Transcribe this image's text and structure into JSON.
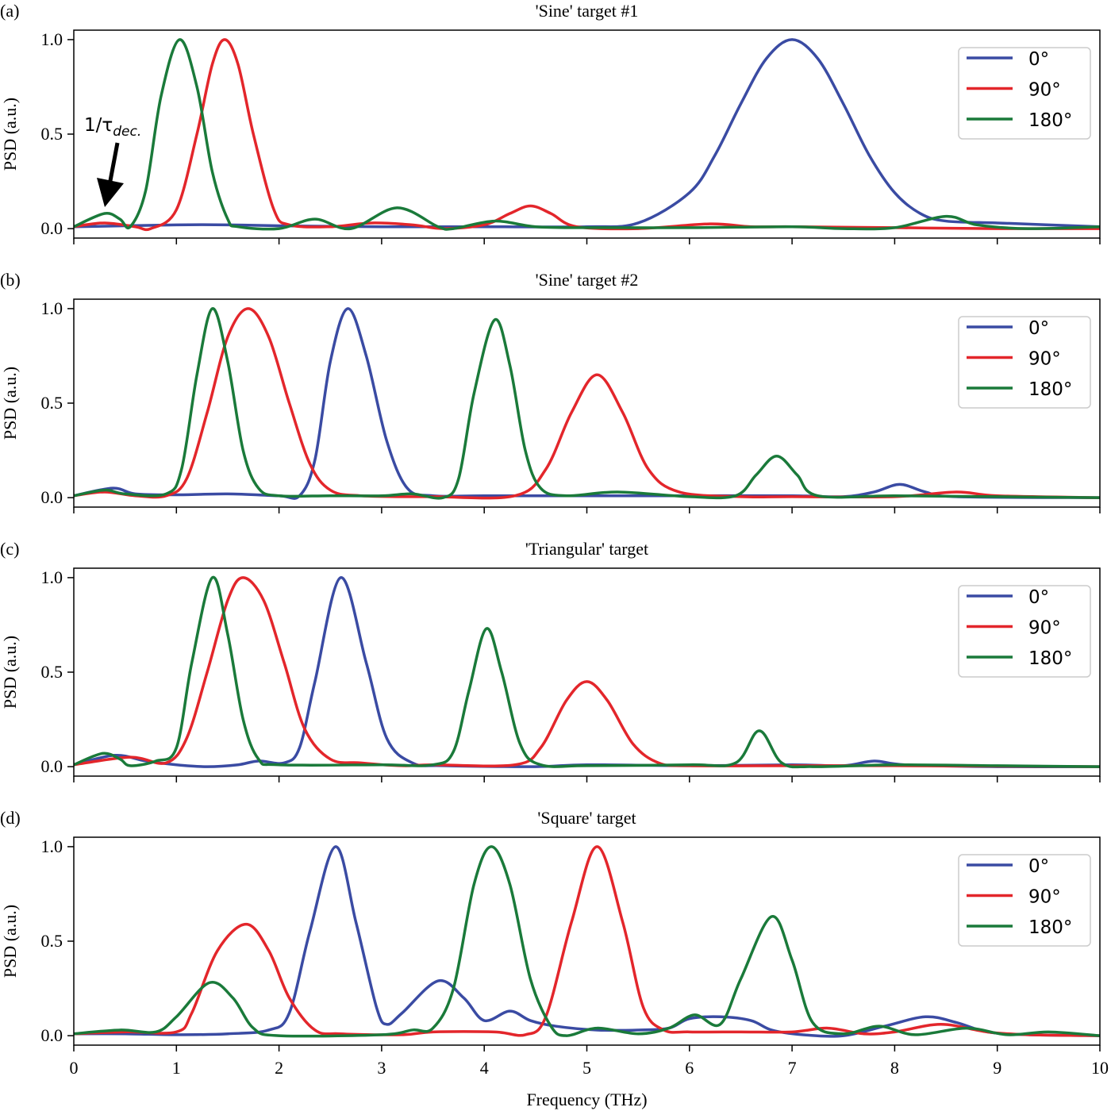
{
  "chart_data": [
    {
      "type": "line",
      "panel": "(a)",
      "title": "'Sine' target #1",
      "ylabel": "PSD (a.u.)",
      "annotation": {
        "text": "1/τ",
        "subscript": "dec."
      },
      "xlim": [
        0,
        10
      ],
      "xticks": [
        0,
        1,
        2,
        3,
        4,
        5,
        6,
        7,
        8,
        9,
        10
      ],
      "show_xticklabels": false,
      "ylim": [
        -0.05,
        1.05
      ],
      "yticks": [
        {
          "value": 0,
          "label": "0.0"
        },
        {
          "value": 0.5,
          "label": "0.5"
        },
        {
          "value": 1,
          "label": "1.0"
        }
      ],
      "legend": "upper right",
      "series": [
        {
          "name": "0°",
          "color": "#3a4ba3",
          "x": [
            0,
            0.5,
            1,
            1.5,
            2,
            3,
            4,
            5,
            5.5,
            6,
            6.25,
            6.5,
            6.75,
            7,
            7.25,
            7.5,
            7.75,
            8,
            8.25,
            8.5,
            9,
            9.5,
            10
          ],
          "values": [
            0.01,
            0.015,
            0.02,
            0.02,
            0.015,
            0.01,
            0.01,
            0.01,
            0.03,
            0.19,
            0.39,
            0.66,
            0.9,
            1.0,
            0.9,
            0.66,
            0.39,
            0.19,
            0.08,
            0.04,
            0.03,
            0.02,
            0.01
          ]
        },
        {
          "name": "90°",
          "color": "#e3262b",
          "x": [
            0,
            0.3,
            0.6,
            0.75,
            1.0,
            1.2,
            1.35,
            1.47,
            1.6,
            1.75,
            1.95,
            2.1,
            2.5,
            2.9,
            3.3,
            3.6,
            4,
            4.25,
            4.45,
            4.65,
            4.9,
            5.5,
            6.2,
            6.6,
            7,
            8,
            9,
            10
          ],
          "values": [
            0.01,
            0.03,
            0.01,
            0,
            0.1,
            0.5,
            0.87,
            1.0,
            0.87,
            0.5,
            0.1,
            0.02,
            0.01,
            0.03,
            0.02,
            0,
            0.02,
            0.08,
            0.12,
            0.08,
            0.01,
            0,
            0.025,
            0.01,
            0.01,
            0.005,
            0,
            0
          ]
        },
        {
          "name": "180°",
          "color": "#1a7a3a",
          "x": [
            0,
            0.3,
            0.45,
            0.55,
            0.7,
            0.85,
            1.03,
            1.2,
            1.35,
            1.5,
            1.6,
            2,
            2.35,
            2.7,
            3.15,
            3.55,
            3.7,
            4.1,
            4.5,
            5,
            6,
            7,
            7.5,
            8,
            8.5,
            8.8,
            9.3,
            10
          ],
          "values": [
            0.01,
            0.08,
            0.05,
            0.01,
            0.2,
            0.7,
            1.0,
            0.75,
            0.3,
            0.05,
            0.01,
            0,
            0.05,
            0,
            0.11,
            0.01,
            0,
            0.04,
            0.01,
            0.005,
            0.005,
            0.01,
            0,
            0.005,
            0.065,
            0.02,
            0,
            0.01
          ]
        }
      ]
    },
    {
      "type": "line",
      "panel": "(b)",
      "title": "'Sine' target #2",
      "ylabel": "PSD (a.u.)",
      "xlim": [
        0,
        10
      ],
      "xticks": [
        0,
        1,
        2,
        3,
        4,
        5,
        6,
        7,
        8,
        9,
        10
      ],
      "show_xticklabels": false,
      "ylim": [
        -0.05,
        1.05
      ],
      "yticks": [
        {
          "value": 0,
          "label": "0.0"
        },
        {
          "value": 0.5,
          "label": "0.5"
        },
        {
          "value": 1,
          "label": "1.0"
        }
      ],
      "legend": "upper right",
      "series": [
        {
          "name": "0°",
          "color": "#3a4ba3",
          "x": [
            0,
            0.38,
            0.6,
            1,
            1.5,
            2,
            2.2,
            2.35,
            2.5,
            2.67,
            2.85,
            3.05,
            3.25,
            3.5,
            4,
            5,
            6,
            7,
            7.5,
            7.8,
            8.05,
            8.3,
            8.6,
            10
          ],
          "values": [
            0.01,
            0.05,
            0.02,
            0.015,
            0.02,
            0.01,
            0.01,
            0.2,
            0.72,
            1.0,
            0.75,
            0.3,
            0.05,
            0.01,
            0.01,
            0.01,
            0.01,
            0.01,
            0.005,
            0.03,
            0.07,
            0.03,
            0.005,
            0
          ]
        },
        {
          "name": "90°",
          "color": "#e3262b",
          "x": [
            0,
            0.3,
            0.6,
            0.9,
            1.1,
            1.3,
            1.5,
            1.7,
            1.9,
            2.1,
            2.3,
            2.5,
            2.8,
            3.5,
            4.3,
            4.6,
            4.85,
            5.1,
            5.35,
            5.6,
            5.9,
            6.5,
            7,
            8,
            8.6,
            9,
            10
          ],
          "values": [
            0.01,
            0.03,
            0.01,
            0.01,
            0.1,
            0.45,
            0.85,
            1.0,
            0.85,
            0.5,
            0.18,
            0.04,
            0.01,
            0.005,
            0.01,
            0.15,
            0.45,
            0.65,
            0.45,
            0.15,
            0.03,
            0.005,
            0.005,
            0.005,
            0.03,
            0.01,
            0
          ]
        },
        {
          "name": "180°",
          "color": "#1a7a3a",
          "x": [
            0,
            0.3,
            0.5,
            0.9,
            1.05,
            1.2,
            1.35,
            1.5,
            1.65,
            1.8,
            2.0,
            2.5,
            3,
            3.3,
            3.6,
            3.75,
            3.9,
            4.1,
            4.25,
            4.4,
            4.55,
            4.8,
            5.3,
            6,
            6.45,
            6.65,
            6.85,
            7.05,
            7.25,
            8,
            9,
            10
          ],
          "values": [
            0.01,
            0.04,
            0.02,
            0.02,
            0.15,
            0.65,
            1.0,
            0.72,
            0.25,
            0.05,
            0.01,
            0.01,
            0.01,
            0.02,
            0,
            0.1,
            0.55,
            0.94,
            0.7,
            0.25,
            0.05,
            0.01,
            0.03,
            0.005,
            0.01,
            0.12,
            0.22,
            0.12,
            0.01,
            0.01,
            0.005,
            0
          ]
        }
      ]
    },
    {
      "type": "line",
      "panel": "(c)",
      "title": "'Triangular' target",
      "ylabel": "PSD (a.u.)",
      "xlim": [
        0,
        10
      ],
      "xticks": [
        0,
        1,
        2,
        3,
        4,
        5,
        6,
        7,
        8,
        9,
        10
      ],
      "show_xticklabels": false,
      "ylim": [
        -0.05,
        1.05
      ],
      "yticks": [
        {
          "value": 0,
          "label": "0.0"
        },
        {
          "value": 0.5,
          "label": "0.5"
        },
        {
          "value": 1,
          "label": "1.0"
        }
      ],
      "legend": "upper right",
      "series": [
        {
          "name": "0°",
          "color": "#3a4ba3",
          "x": [
            0,
            0.4,
            0.7,
            1,
            1.3,
            1.6,
            1.8,
            2.05,
            2.2,
            2.35,
            2.6,
            2.85,
            3.05,
            3.3,
            3.6,
            4.5,
            5,
            6,
            7,
            7.5,
            7.8,
            8.1,
            9,
            10
          ],
          "values": [
            0.01,
            0.06,
            0.03,
            0.01,
            0,
            0.01,
            0.03,
            0.02,
            0.1,
            0.45,
            1.0,
            0.55,
            0.15,
            0.02,
            0.005,
            0,
            0.01,
            0.005,
            0.01,
            0.005,
            0.03,
            0.01,
            0,
            0
          ]
        },
        {
          "name": "90°",
          "color": "#e3262b",
          "x": [
            0,
            0.55,
            0.9,
            1.1,
            1.3,
            1.5,
            1.65,
            1.85,
            2.05,
            2.25,
            2.5,
            2.8,
            3.2,
            3.5,
            4.3,
            4.55,
            4.8,
            5.0,
            5.2,
            5.45,
            5.7,
            6,
            7,
            8,
            10
          ],
          "values": [
            0.01,
            0.05,
            0.02,
            0.15,
            0.5,
            0.88,
            1.0,
            0.88,
            0.55,
            0.2,
            0.04,
            0.02,
            0.005,
            0.01,
            0.01,
            0.1,
            0.35,
            0.45,
            0.35,
            0.12,
            0.02,
            0.005,
            0.005,
            0.005,
            0
          ]
        },
        {
          "name": "180°",
          "color": "#1a7a3a",
          "x": [
            0,
            0.28,
            0.45,
            0.55,
            0.8,
            1.0,
            1.15,
            1.35,
            1.5,
            1.65,
            1.8,
            2.0,
            3,
            3.5,
            3.7,
            3.85,
            4.02,
            4.17,
            4.35,
            4.55,
            5,
            6,
            6.45,
            6.68,
            6.9,
            7.2,
            8,
            9,
            10
          ],
          "values": [
            0.01,
            0.07,
            0.04,
            0.005,
            0.03,
            0.1,
            0.55,
            1.0,
            0.7,
            0.25,
            0.04,
            0.01,
            0.01,
            0.01,
            0.08,
            0.4,
            0.73,
            0.5,
            0.12,
            0.01,
            0.005,
            0.01,
            0.02,
            0.19,
            0.02,
            0,
            0.01,
            0.005,
            0
          ]
        }
      ]
    },
    {
      "type": "line",
      "panel": "(d)",
      "title": "'Square' target",
      "ylabel": "PSD (a.u.)",
      "xlabel": "Frequency (THz)",
      "xlim": [
        0,
        10
      ],
      "xticks": [
        0,
        1,
        2,
        3,
        4,
        5,
        6,
        7,
        8,
        9,
        10
      ],
      "show_xticklabels": true,
      "ylim": [
        -0.05,
        1.05
      ],
      "yticks": [
        {
          "value": 0,
          "label": "0.0"
        },
        {
          "value": 0.5,
          "label": "0.5"
        },
        {
          "value": 1,
          "label": "1.0"
        }
      ],
      "legend": "upper right",
      "series": [
        {
          "name": "0°",
          "color": "#3a4ba3",
          "x": [
            0,
            0.5,
            1,
            1.5,
            1.9,
            2.1,
            2.3,
            2.55,
            2.75,
            2.95,
            3.05,
            3.2,
            3.55,
            3.8,
            4.0,
            4.25,
            4.45,
            4.7,
            5.1,
            5.5,
            5.8,
            6.0,
            6.3,
            6.6,
            6.8,
            7.1,
            7.5,
            7.9,
            8.3,
            8.6,
            8.9,
            9.3,
            10
          ],
          "values": [
            0.01,
            0.01,
            0.005,
            0.01,
            0.03,
            0.12,
            0.55,
            1.0,
            0.6,
            0.15,
            0.06,
            0.12,
            0.29,
            0.2,
            0.08,
            0.13,
            0.08,
            0.05,
            0.03,
            0.03,
            0.04,
            0.09,
            0.1,
            0.08,
            0.03,
            0.005,
            0,
            0.05,
            0.1,
            0.07,
            0.02,
            0.005,
            0
          ]
        },
        {
          "name": "90°",
          "color": "#e3262b",
          "x": [
            0,
            0.5,
            1,
            1.15,
            1.4,
            1.68,
            1.9,
            2.1,
            2.35,
            2.6,
            3.2,
            3.5,
            4.1,
            4.4,
            4.6,
            4.85,
            5.1,
            5.35,
            5.55,
            5.75,
            6,
            6.5,
            7,
            7.35,
            7.7,
            8,
            8.45,
            8.9,
            9.3,
            10
          ],
          "values": [
            0.01,
            0.02,
            0.02,
            0.12,
            0.45,
            0.59,
            0.45,
            0.2,
            0.03,
            0.01,
            0.005,
            0.02,
            0.02,
            0.005,
            0.1,
            0.6,
            1.0,
            0.6,
            0.15,
            0.03,
            0.02,
            0.02,
            0.02,
            0.04,
            0.01,
            0.02,
            0.06,
            0.02,
            0.005,
            0
          ]
        },
        {
          "name": "180°",
          "color": "#1a7a3a",
          "x": [
            0,
            0.45,
            0.8,
            1.0,
            1.32,
            1.55,
            1.75,
            2.0,
            3,
            3.3,
            3.5,
            3.7,
            3.9,
            4.07,
            4.25,
            4.45,
            4.65,
            4.8,
            5.1,
            5.5,
            5.8,
            6.05,
            6.3,
            6.5,
            6.8,
            7.0,
            7.2,
            7.5,
            7.85,
            8.2,
            8.7,
            9.1,
            9.5,
            10
          ],
          "values": [
            0.01,
            0.03,
            0.02,
            0.1,
            0.28,
            0.2,
            0.04,
            0,
            0.005,
            0.03,
            0.04,
            0.25,
            0.8,
            1.0,
            0.8,
            0.3,
            0.05,
            0,
            0.04,
            0.01,
            0.04,
            0.11,
            0.06,
            0.3,
            0.63,
            0.4,
            0.07,
            0.01,
            0.05,
            0.005,
            0.04,
            0.005,
            0.02,
            0
          ]
        }
      ]
    }
  ]
}
